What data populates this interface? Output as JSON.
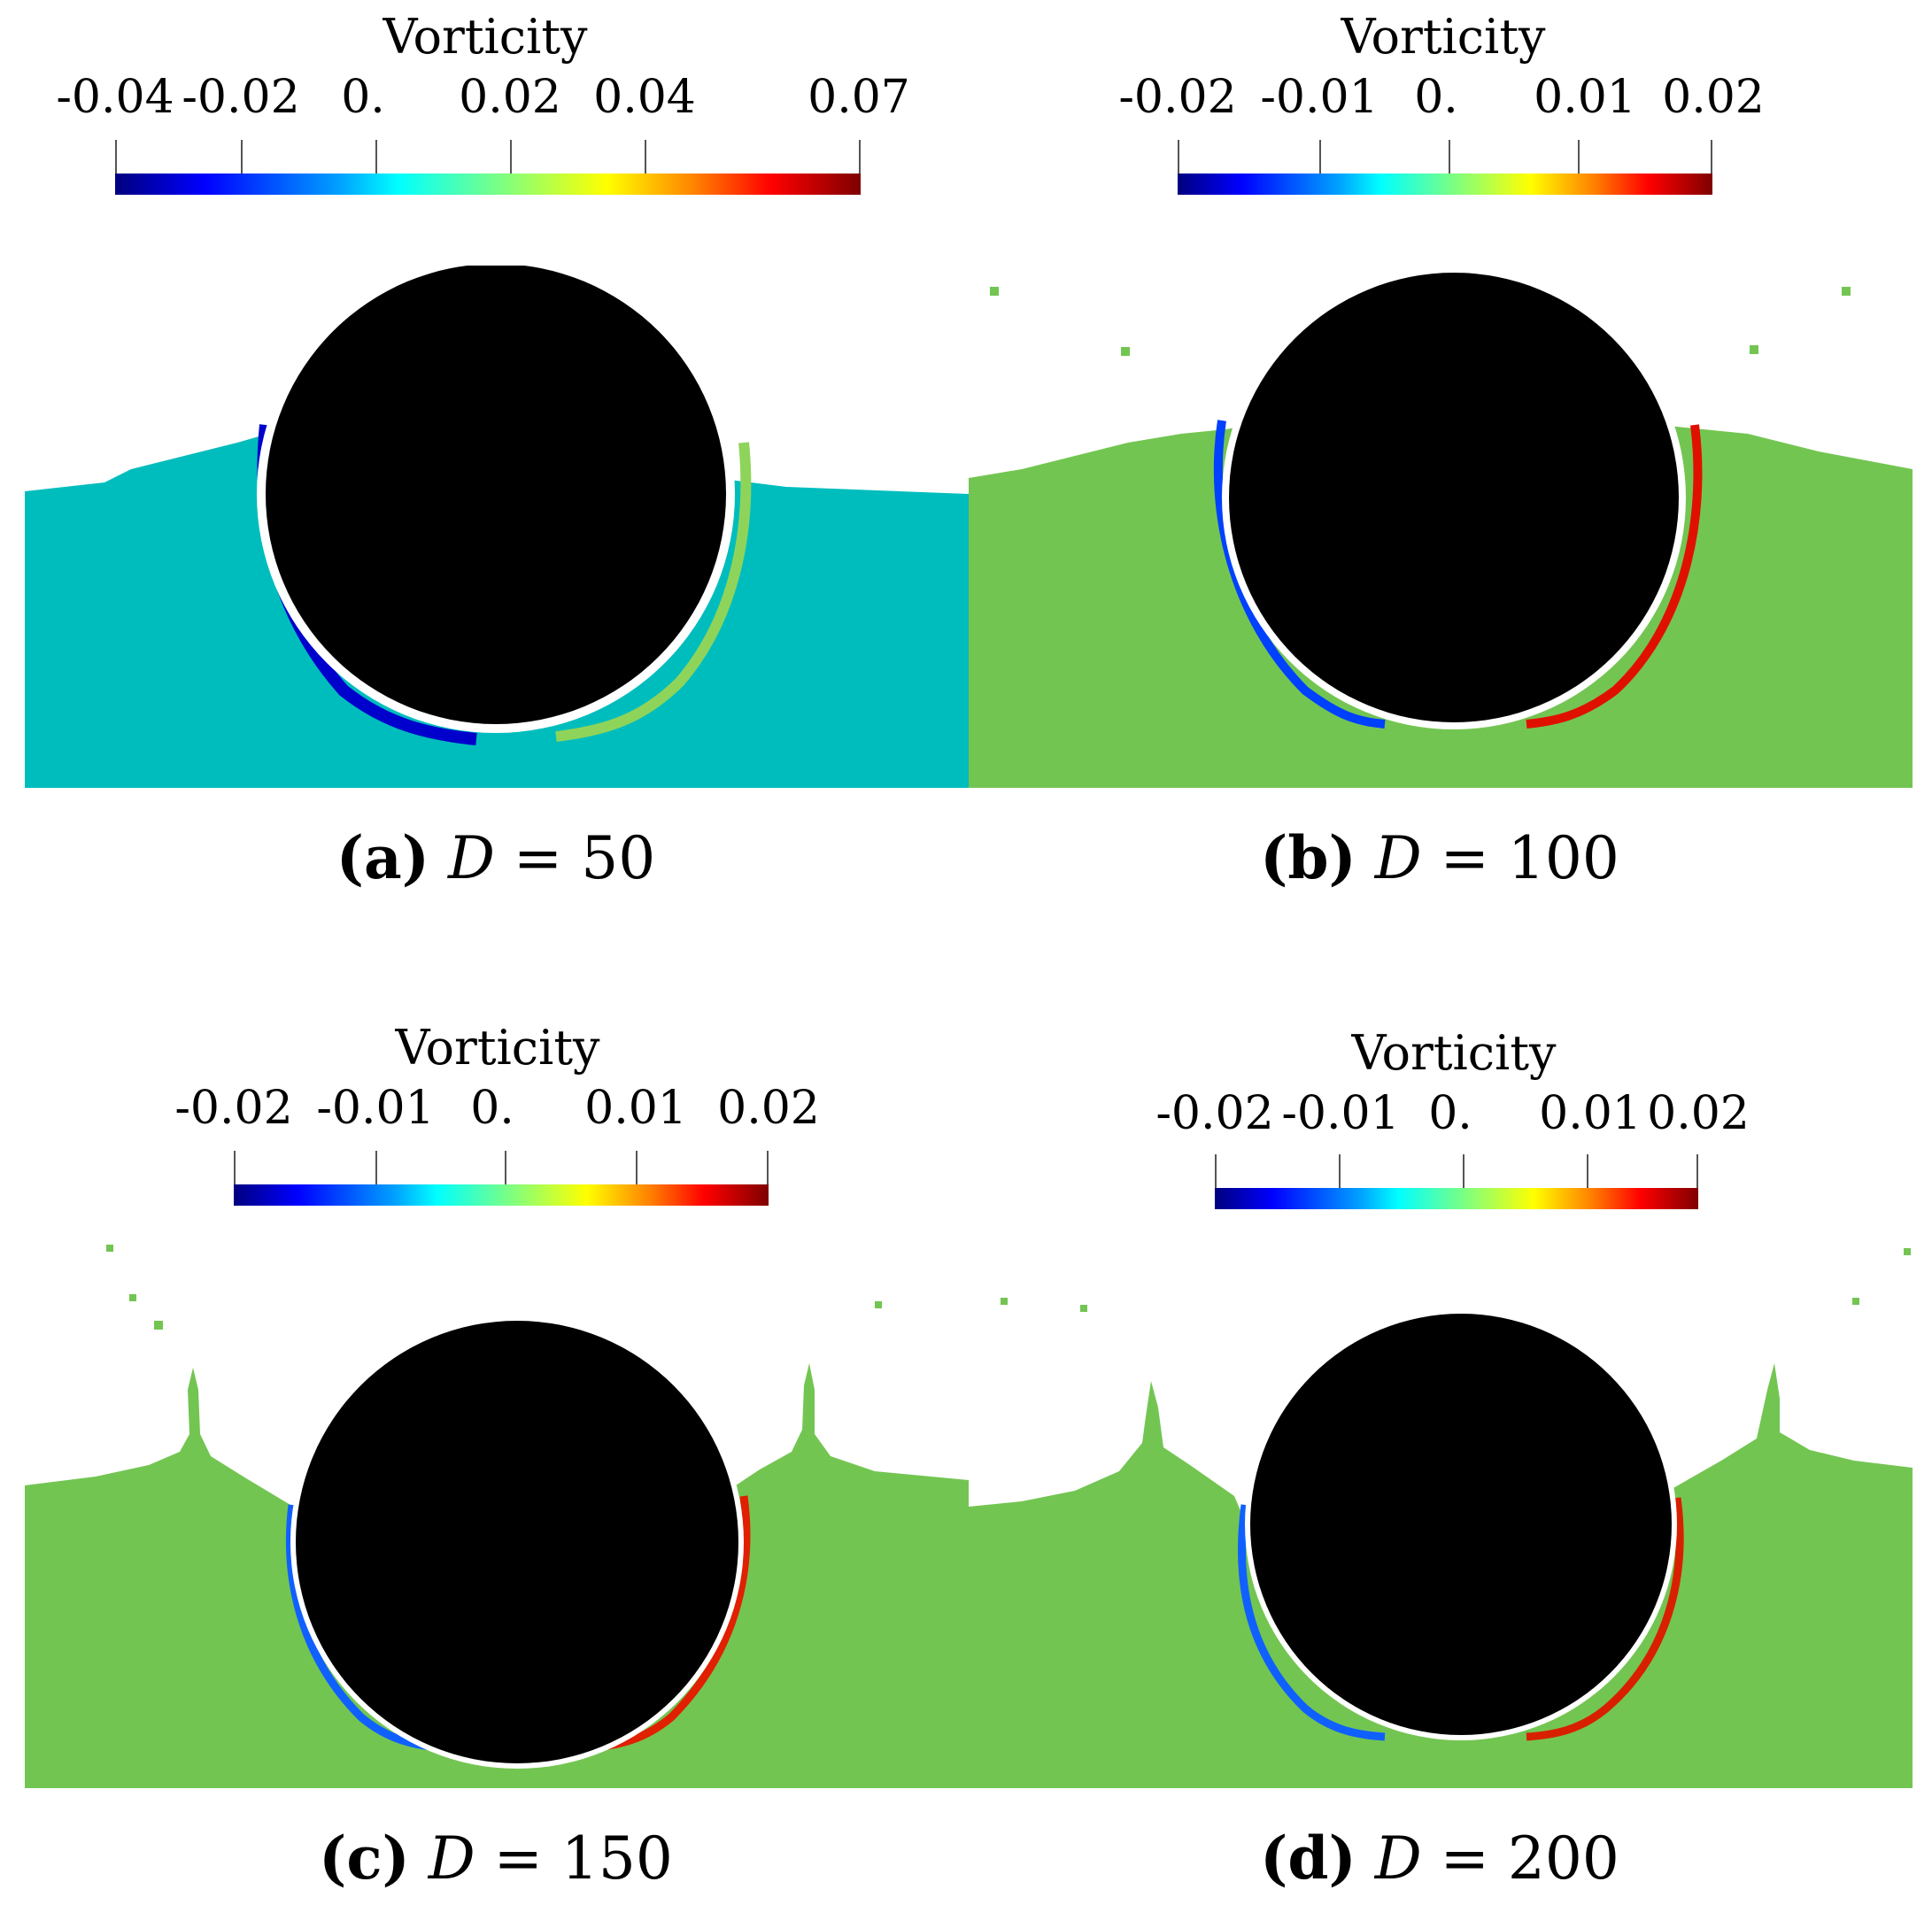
{
  "panels": [
    {
      "id": "a",
      "colorbar": {
        "title": "Vorticity",
        "tick_labels": [
          "-0.04",
          "-0.02",
          "0.",
          "0.02",
          "0.04",
          "0.07"
        ]
      },
      "caption": {
        "letter": "(a)",
        "variable": "D",
        "equals": "=",
        "value": "50"
      },
      "fluid_color": "#00bdbd"
    },
    {
      "id": "b",
      "colorbar": {
        "title": "Vorticity",
        "tick_labels": [
          "-0.02",
          "-0.01",
          "0.",
          "0.01",
          "0.02"
        ]
      },
      "caption": {
        "letter": "(b)",
        "variable": "D",
        "equals": "=",
        "value": "100"
      },
      "fluid_color": "#73c552"
    },
    {
      "id": "c",
      "colorbar": {
        "title": "Vorticity",
        "tick_labels": [
          "-0.02",
          "-0.01",
          "0.",
          "0.01",
          "0.02"
        ]
      },
      "caption": {
        "letter": "(c)",
        "variable": "D",
        "equals": "=",
        "value": "150"
      },
      "fluid_color": "#73c552"
    },
    {
      "id": "d",
      "colorbar": {
        "title": "Vorticity",
        "tick_labels": [
          "-0.02",
          "-0.01",
          "0.",
          "0.01",
          "0.02"
        ]
      },
      "caption": {
        "letter": "(d)",
        "variable": "D",
        "equals": "=",
        "value": "200"
      },
      "fluid_color": "#73c552"
    }
  ],
  "colors": {
    "cylinder": "#000000",
    "negative_vorticity": "#0000ff",
    "positive_vorticity": "#ff0000"
  }
}
